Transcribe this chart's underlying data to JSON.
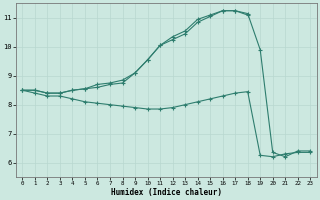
{
  "xlabel": "Humidex (Indice chaleur)",
  "background_color": "#cce8e0",
  "line_color": "#2e7d6e",
  "grid_color": "#b8d8d0",
  "xlim": [
    -0.5,
    23.5
  ],
  "ylim": [
    5.5,
    11.5
  ],
  "xticks": [
    0,
    1,
    2,
    3,
    4,
    5,
    6,
    7,
    8,
    9,
    10,
    11,
    12,
    13,
    14,
    15,
    16,
    17,
    18,
    19,
    20,
    21,
    22,
    23
  ],
  "yticks": [
    6,
    7,
    8,
    9,
    10,
    11
  ],
  "line1_x": [
    0,
    1,
    2,
    3,
    4,
    5,
    6,
    7,
    8,
    9,
    10,
    11,
    12,
    13,
    14,
    15,
    16,
    17,
    18,
    19,
    20,
    21,
    22,
    23
  ],
  "line1_y": [
    8.5,
    8.5,
    8.4,
    8.4,
    8.5,
    8.55,
    8.6,
    8.7,
    8.75,
    9.1,
    9.55,
    10.05,
    10.25,
    10.45,
    10.85,
    11.05,
    11.25,
    11.25,
    11.15,
    9.9,
    6.35,
    6.2,
    6.4,
    6.4
  ],
  "line2_x": [
    0,
    1,
    2,
    3,
    4,
    5,
    6,
    7,
    8,
    9,
    10,
    11,
    12,
    13,
    14,
    15,
    16,
    17,
    18
  ],
  "line2_y": [
    8.5,
    8.5,
    8.4,
    8.4,
    8.5,
    8.55,
    8.7,
    8.75,
    8.85,
    9.1,
    9.55,
    10.05,
    10.35,
    10.55,
    10.95,
    11.1,
    11.25,
    11.25,
    11.1
  ],
  "line3_x": [
    0,
    1,
    2,
    3,
    4,
    5,
    6,
    7,
    8,
    9,
    10,
    11,
    12,
    13,
    14,
    15,
    16,
    17,
    18,
    19,
    20,
    21,
    22,
    23
  ],
  "line3_y": [
    8.5,
    8.4,
    8.3,
    8.3,
    8.2,
    8.1,
    8.05,
    8.0,
    7.95,
    7.9,
    7.85,
    7.85,
    7.9,
    8.0,
    8.1,
    8.2,
    8.3,
    8.4,
    8.45,
    6.25,
    6.2,
    6.3,
    6.35,
    6.35
  ]
}
